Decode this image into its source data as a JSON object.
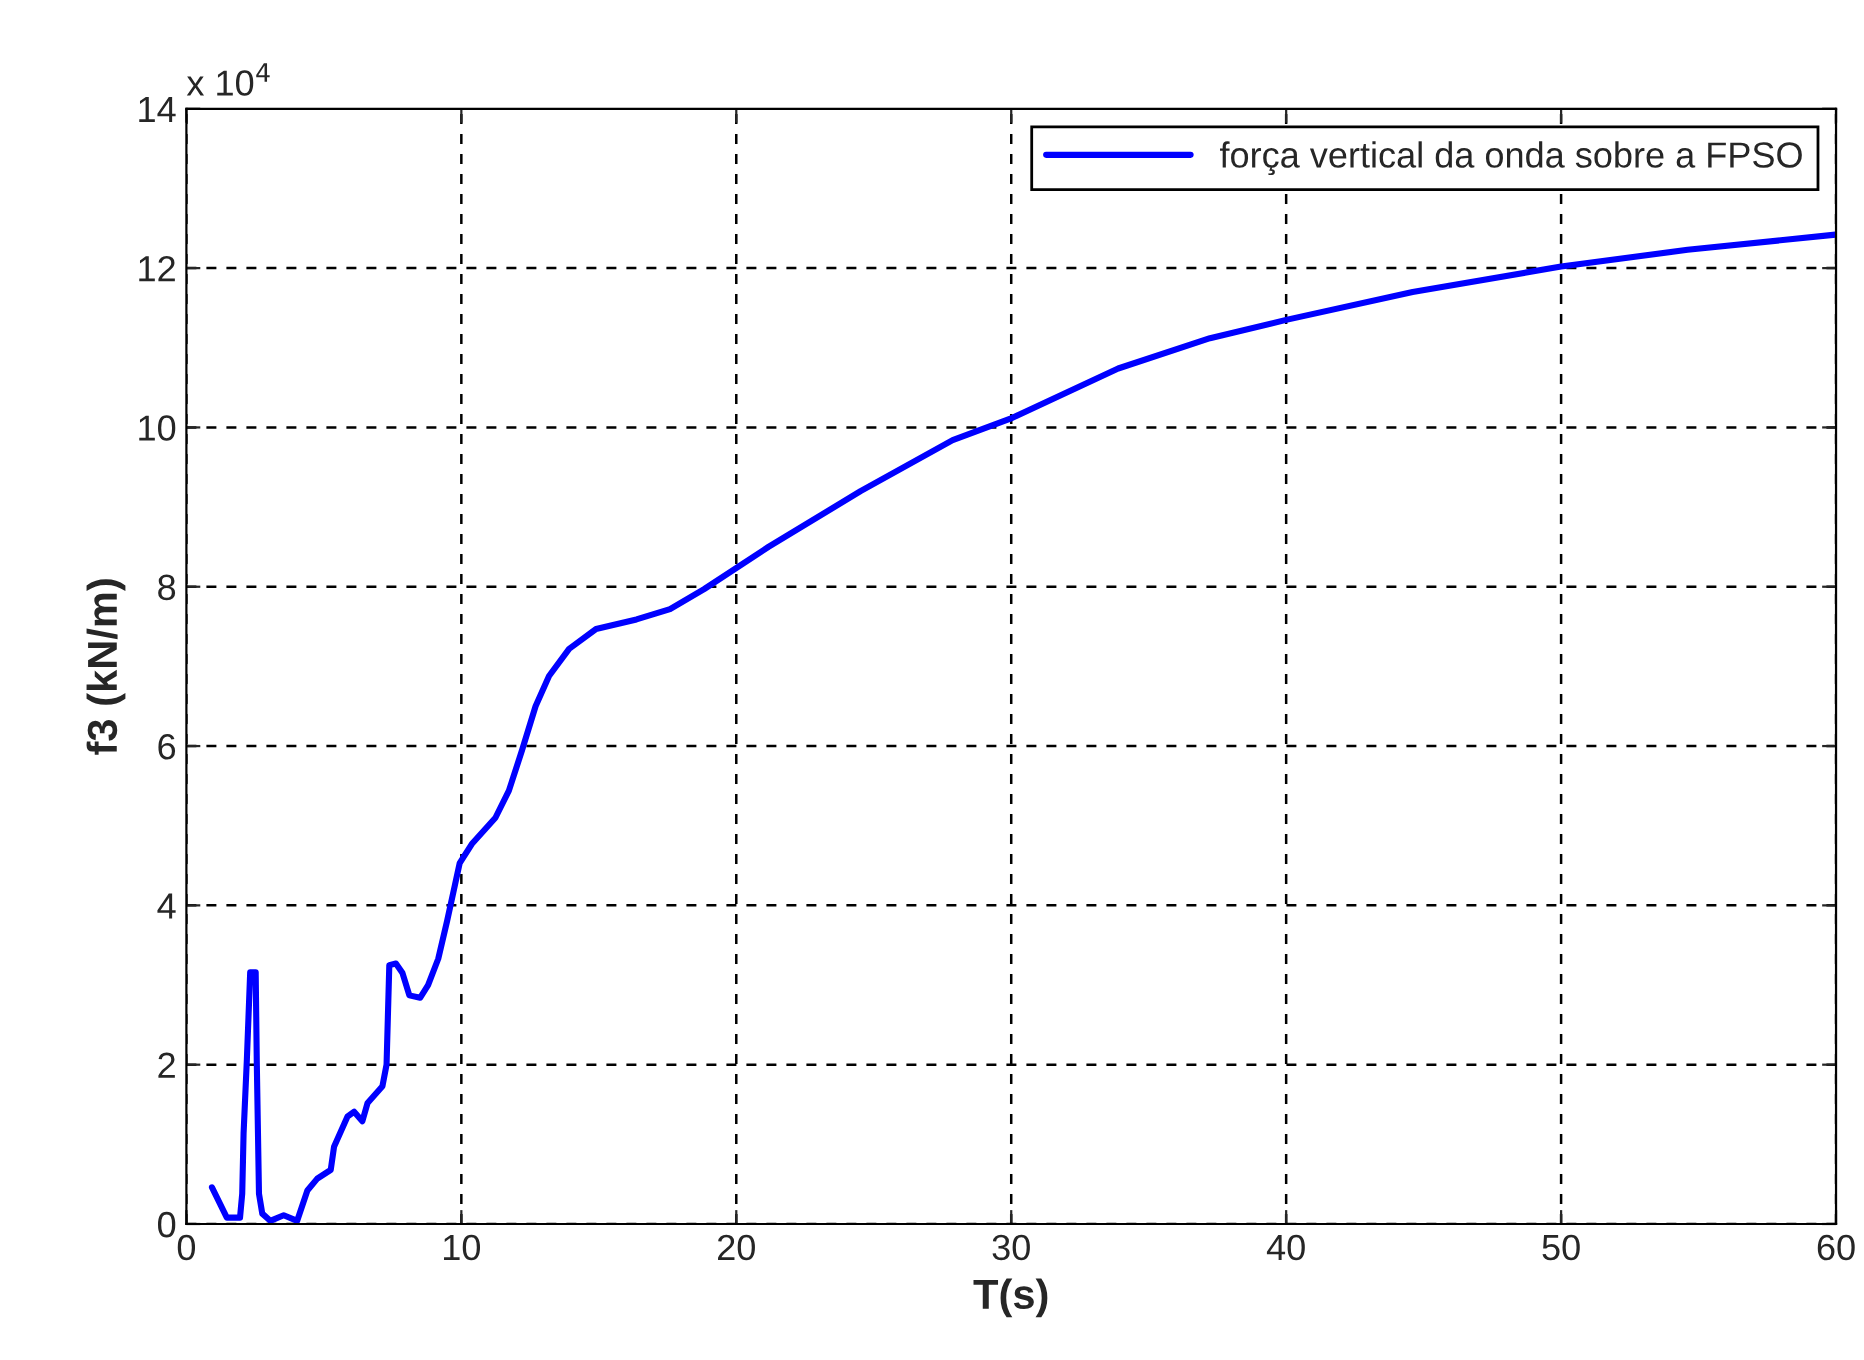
{
  "chart_data": {
    "type": "line",
    "xlabel": "T(s)",
    "ylabel": "f3 (kN/m)",
    "annotations": [
      "x 10$^{4}$"
    ],
    "xlim": [
      0,
      60
    ],
    "xticks": [
      0,
      10,
      20,
      30,
      40,
      50,
      60
    ],
    "ylim": [
      0,
      14
    ],
    "yticks": [
      0,
      2,
      4,
      6,
      8,
      10,
      12,
      14
    ],
    "grid": true,
    "legend": "top right",
    "line_style": "solid",
    "series": [
      {
        "name": "força vertical da onda sobre a FPSO",
        "color": "#0000ff",
        "x": [
          0.93,
          1.47,
          1.95,
          2.03,
          2.08,
          2.2,
          2.32,
          2.52,
          2.56,
          2.64,
          2.76,
          3.05,
          3.54,
          4.03,
          4.4,
          4.76,
          5.25,
          5.37,
          5.86,
          6.1,
          6.4,
          6.59,
          7.13,
          7.28,
          7.38,
          7.62,
          7.86,
          8.11,
          8.5,
          8.79,
          9.16,
          9.48,
          9.77,
          9.94,
          10.38,
          11.24,
          11.73,
          12.21,
          12.7,
          13.19,
          13.92,
          14.9,
          16.37,
          17.59,
          18.83,
          21.17,
          24.52,
          27.87,
          29.97,
          33.89,
          37.23,
          40.0,
          44.6,
          50.0,
          54.6,
          59.98
        ],
        "values": [
          0.46,
          0.08,
          0.08,
          0.38,
          1.14,
          2.07,
          3.16,
          3.16,
          2.03,
          0.38,
          0.13,
          0.04,
          0.11,
          0.04,
          0.42,
          0.57,
          0.68,
          0.97,
          1.35,
          1.41,
          1.29,
          1.52,
          1.73,
          2.0,
          3.25,
          3.27,
          3.15,
          2.87,
          2.84,
          3.0,
          3.33,
          3.8,
          4.26,
          4.53,
          4.77,
          5.1,
          5.44,
          5.95,
          6.5,
          6.88,
          7.22,
          7.47,
          7.59,
          7.72,
          7.97,
          8.5,
          9.2,
          9.84,
          10.11,
          10.74,
          11.12,
          11.35,
          11.7,
          12.02,
          12.23,
          12.42
        ]
      }
    ]
  }
}
